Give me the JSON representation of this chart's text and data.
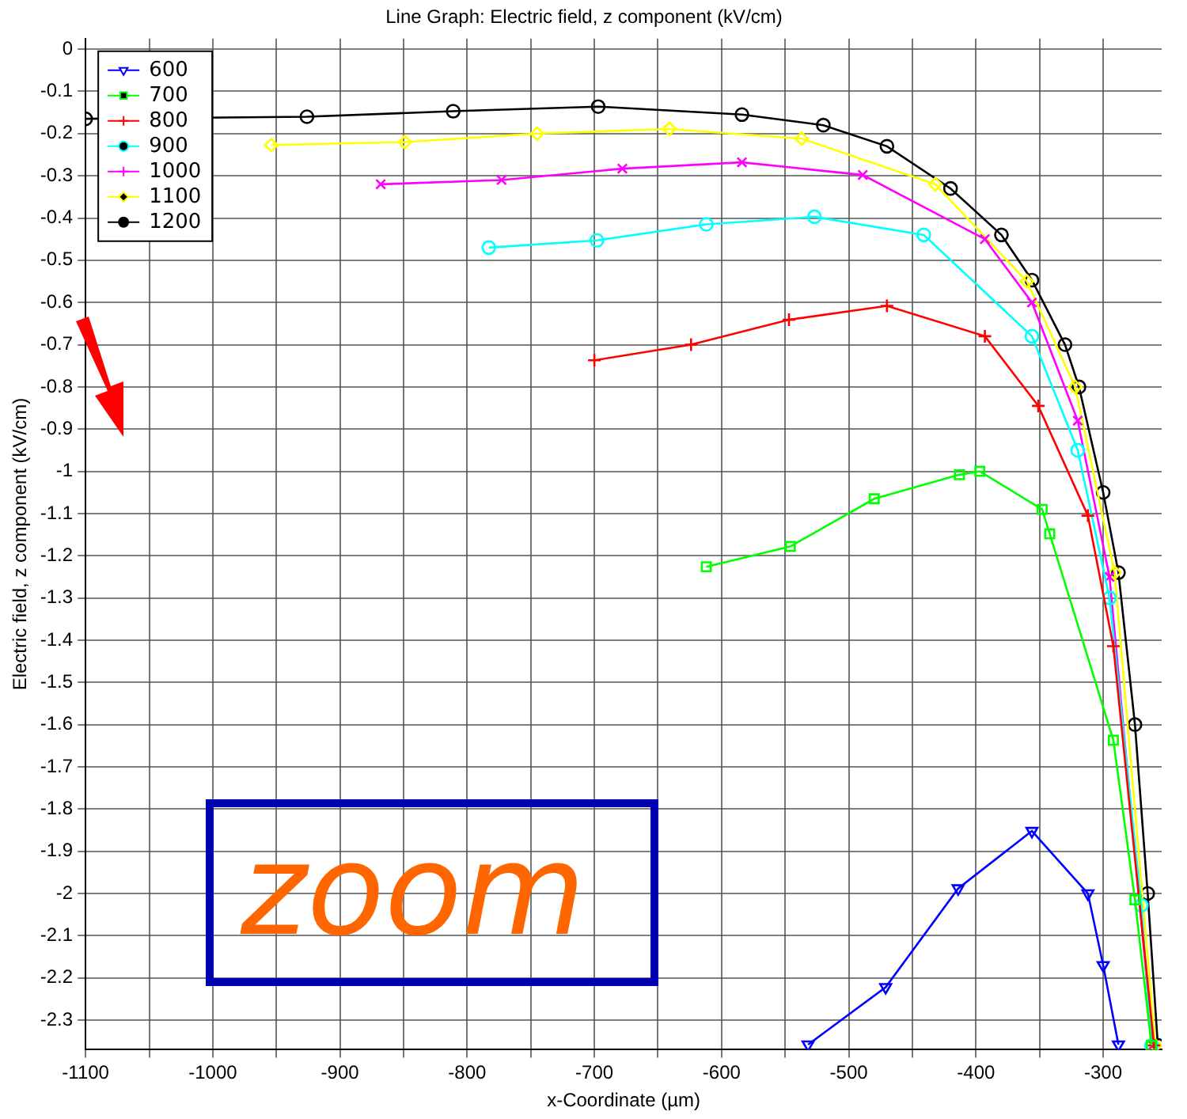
{
  "chart_data": {
    "type": "line",
    "title": "Line Graph: Electric field, z component (kV/cm)",
    "xlabel": "x-Coordinate (µm)",
    "ylabel": "Electric field, z component (kV/cm)",
    "xlim": [
      -1100,
      -254
    ],
    "ylim": [
      -2.37,
      0.025
    ],
    "xticks": [
      -1100,
      {
        "value": -1050,
        "label": null
      },
      -1000,
      {
        "value": -950,
        "label": null
      },
      -900,
      {
        "value": -850,
        "label": null
      },
      -800,
      {
        "value": -750,
        "label": null
      },
      -700,
      {
        "value": -650,
        "label": null
      },
      -600,
      {
        "value": -550,
        "label": null
      },
      -500,
      {
        "value": -450,
        "label": null
      },
      -400,
      {
        "value": -350,
        "label": null
      },
      -300
    ],
    "yticks": [
      0,
      -0.1,
      -0.2,
      -0.3,
      -0.4,
      -0.5,
      -0.6,
      -0.7,
      -0.8,
      -0.9,
      -1,
      -1.1,
      -1.2,
      -1.3,
      -1.4,
      -1.5,
      -1.6,
      -1.7,
      -1.8,
      -1.9,
      -2,
      -2.1,
      -2.2,
      -2.3
    ],
    "grid": true,
    "legend": "top left",
    "line_style": "solid",
    "annotations": [
      "zoom"
    ],
    "series": [
      {
        "name": "600",
        "color": "#0000ff",
        "marker": "triangle",
        "x": [
          -532,
          -471,
          -414,
          -356,
          -312,
          -300,
          -288
        ],
        "values": [
          -2.358,
          -2.222,
          -1.988,
          -1.852,
          -2.0,
          -2.17,
          -2.358
        ]
      },
      {
        "name": "700",
        "color": "#00ff00",
        "marker": "square",
        "x": [
          -612,
          -546,
          -480,
          -413,
          -397,
          -348,
          -342,
          -292,
          -275,
          -262
        ],
        "values": [
          -1.226,
          -1.178,
          -1.065,
          -1.008,
          -1.0,
          -1.09,
          -1.148,
          -1.637,
          -2.015,
          -2.36
        ]
      },
      {
        "name": "800",
        "color": "#ff0000",
        "marker": "cross",
        "x": [
          -700,
          -624,
          -547,
          -470,
          -393,
          -351,
          -312,
          -292,
          -260
        ],
        "values": [
          -0.737,
          -0.7,
          -0.641,
          -0.608,
          -0.68,
          -0.845,
          -1.105,
          -1.414,
          -2.36
        ]
      },
      {
        "name": "900",
        "color": "#00ffff",
        "marker": "circle",
        "x": [
          -783,
          -698,
          -612,
          -527,
          -441,
          -356,
          -320,
          -295,
          -270,
          -262
        ],
        "values": [
          -0.47,
          -0.453,
          -0.415,
          -0.397,
          -0.44,
          -0.68,
          -0.95,
          -1.3,
          -2.028,
          -2.36
        ]
      },
      {
        "name": "1000",
        "color": "#ff00ff",
        "marker": "cross",
        "x": [
          -868,
          -773,
          -678,
          -584,
          -489,
          -393,
          -356,
          -320,
          -295,
          -261
        ],
        "values": [
          -0.32,
          -0.31,
          -0.283,
          -0.268,
          -0.298,
          -0.45,
          -0.6,
          -0.88,
          -1.25,
          -2.36
        ]
      },
      {
        "name": "1100",
        "color": "#ffff00",
        "marker": "diamond",
        "x": [
          -954,
          -849,
          -745,
          -641,
          -537,
          -432,
          -360,
          -322,
          -291,
          -259
        ],
        "values": [
          -0.227,
          -0.22,
          -0.2,
          -0.189,
          -0.212,
          -0.32,
          -0.55,
          -0.8,
          -1.24,
          -2.36
        ]
      },
      {
        "name": "1200",
        "color": "#000000",
        "marker": "circle",
        "x": [
          -1100,
          -926,
          -811,
          -697,
          -584,
          -520,
          -470,
          -420,
          -380,
          -356,
          -330,
          -319,
          -300,
          -288,
          -275,
          -265,
          -257
        ],
        "values": [
          -0.165,
          -0.16,
          -0.147,
          -0.136,
          -0.155,
          -0.18,
          -0.23,
          -0.33,
          -0.44,
          -0.547,
          -0.7,
          -0.8,
          -1.05,
          -1.24,
          -1.6,
          -2.0,
          -2.36
        ]
      }
    ]
  }
}
